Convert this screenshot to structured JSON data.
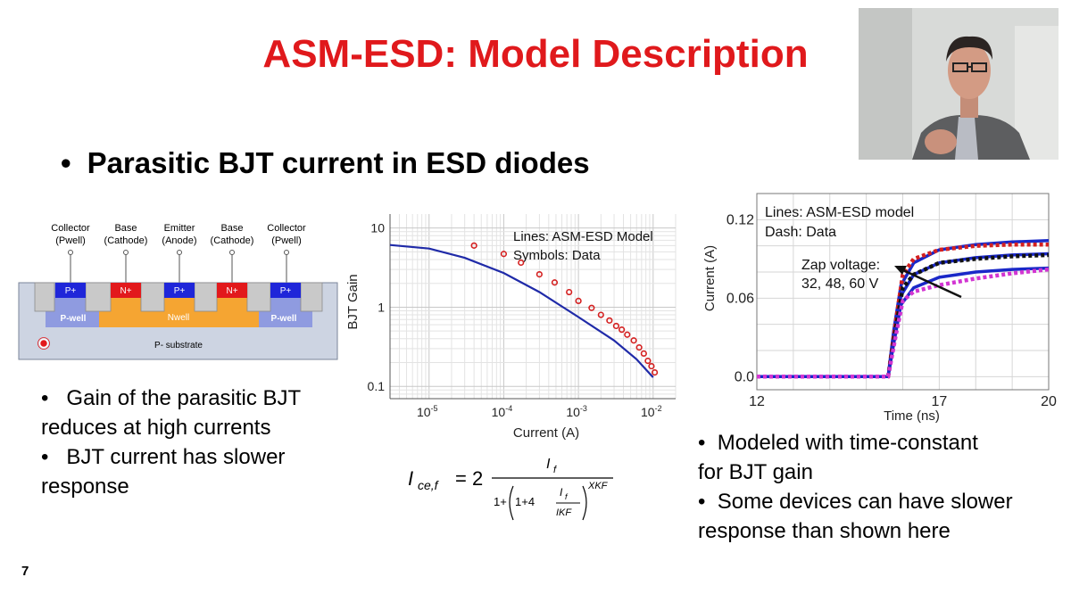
{
  "slide": {
    "title": "ASM-ESD: Model Description",
    "main_bullet": "Parasitic BJT current in ESD diodes",
    "bullet_symbol": "•",
    "slide_number": "7"
  },
  "cross_section": {
    "top_labels": [
      {
        "line1": "Collector",
        "line2": "(Pwell)"
      },
      {
        "line1": "Base",
        "line2": "(Cathode)"
      },
      {
        "line1": "Emitter",
        "line2": "(Anode)"
      },
      {
        "line1": "Base",
        "line2": "(Cathode)"
      },
      {
        "line1": "Collector",
        "line2": "(Pwell)"
      }
    ],
    "implants": [
      "P+",
      "N+",
      "P+",
      "N+",
      "P+"
    ],
    "regions": {
      "pwell_left": "P-well",
      "nwell": "Nwell",
      "pwell_right": "P-well",
      "substrate": "P- substrate"
    },
    "colors": {
      "p_plus": "#1f26d9",
      "n_plus": "#e2191c",
      "nwell": "#f5a532",
      "pwell": "#8f9be0",
      "oxide": "#c9c9c9",
      "substrate": "#cdd4e2"
    }
  },
  "left_notes": {
    "bullet1_line1": "Gain of the parasitic BJT",
    "bullet1_line2": "reduces at high currents",
    "bullet2_line1": "BJT current has slower",
    "bullet2_line2": "response"
  },
  "right_notes": {
    "bullet1_line1": "Modeled with time-constant",
    "bullet1_line2": "for BJT gain",
    "bullet2_line1": "Some devices can have slower",
    "bullet2_line2": "response than shown here"
  },
  "formula": {
    "lhs": "I",
    "lhs_sub": "ce,f",
    "equals": "= 2",
    "num": "I",
    "num_sub": "f",
    "den_a": "1+",
    "den_b": "1+4",
    "den_num": "I",
    "den_num_sub": "f",
    "den_den": "IKF",
    "exponent": "XKF"
  },
  "chart_data": [
    {
      "type": "line",
      "xlabel": "Current (A)",
      "ylabel": "BJT Gain",
      "x_scale": "log",
      "y_scale": "log",
      "xlim": [
        3e-06,
        0.02
      ],
      "ylim": [
        0.07,
        15
      ],
      "x_ticks": [
        {
          "value": 1e-05,
          "base": "10",
          "exp": "-5"
        },
        {
          "value": 0.0001,
          "base": "10",
          "exp": "-4"
        },
        {
          "value": 0.001,
          "base": "10",
          "exp": "-3"
        },
        {
          "value": 0.01,
          "base": "10",
          "exp": "-2"
        }
      ],
      "y_ticks": [
        {
          "value": 10,
          "label": "10"
        },
        {
          "value": 1,
          "label": "1"
        },
        {
          "value": 0.1,
          "label": "0.1"
        }
      ],
      "legend": {
        "line1": "Lines: ASM-ESD Model",
        "line2": "Symbols: Data"
      },
      "grid": true,
      "series": [
        {
          "style": "line",
          "color": "#1f2aa8",
          "x": [
            3e-06,
            1e-05,
            3e-05,
            0.0001,
            0.0003,
            0.001,
            0.003,
            0.006,
            0.01
          ],
          "y": [
            6.1,
            5.5,
            4.2,
            2.7,
            1.55,
            0.75,
            0.38,
            0.22,
            0.13
          ]
        },
        {
          "style": "markers",
          "color": "#d42020",
          "x": [
            4e-05,
            0.0001,
            0.00017,
            0.0003,
            0.00048,
            0.00075,
            0.001,
            0.0015,
            0.002,
            0.0026,
            0.0032,
            0.0038,
            0.0045,
            0.0055,
            0.0065,
            0.0075,
            0.0085,
            0.0095,
            0.0105
          ],
          "y": [
            6.0,
            4.7,
            3.65,
            2.6,
            2.05,
            1.55,
            1.2,
            0.98,
            0.8,
            0.68,
            0.58,
            0.52,
            0.45,
            0.38,
            0.31,
            0.26,
            0.21,
            0.18,
            0.15
          ]
        }
      ]
    },
    {
      "type": "line",
      "xlabel": "Time (ns)",
      "ylabel": "Current (A)",
      "xlim": [
        12,
        20
      ],
      "ylim": [
        -0.01,
        0.14
      ],
      "x_ticks": [
        {
          "value": 12,
          "label": "12"
        },
        {
          "value": 17,
          "label": "17"
        },
        {
          "value": 20,
          "label": "20"
        }
      ],
      "y_ticks": [
        {
          "value": 0.12,
          "label": "0.12"
        },
        {
          "value": 0.06,
          "label": "0.06"
        },
        {
          "value": 0.0,
          "label": "0.0"
        }
      ],
      "legend": {
        "line1": "Lines: ASM-ESD model",
        "line2": "Dash: Data"
      },
      "annotation": {
        "line1": "Zap voltage:",
        "line2": "32, 48, 60 V"
      },
      "grid": true,
      "series": [
        {
          "style": "solid",
          "color": "#1a28c8",
          "x": [
            12,
            15.6,
            15.75,
            15.95,
            16.3,
            17,
            18,
            19,
            20
          ],
          "y": [
            0.0,
            0.0,
            0.035,
            0.07,
            0.087,
            0.097,
            0.101,
            0.103,
            0.104
          ]
        },
        {
          "style": "solid",
          "color": "#1a28c8",
          "x": [
            12,
            15.6,
            15.75,
            15.95,
            16.3,
            17,
            18,
            19,
            20
          ],
          "y": [
            0.0,
            0.0,
            0.03,
            0.062,
            0.078,
            0.087,
            0.091,
            0.093,
            0.094
          ]
        },
        {
          "style": "solid",
          "color": "#1a28c8",
          "x": [
            12,
            15.6,
            15.75,
            15.95,
            16.3,
            17,
            18,
            19,
            20
          ],
          "y": [
            0.0,
            0.0,
            0.025,
            0.055,
            0.068,
            0.076,
            0.08,
            0.082,
            0.083
          ]
        },
        {
          "style": "dash",
          "color": "#d42020",
          "x": [
            12,
            15.6,
            15.8,
            16.0,
            16.3,
            17,
            18,
            19,
            20
          ],
          "y": [
            0.0,
            0.0,
            0.04,
            0.078,
            0.09,
            0.097,
            0.1,
            0.101,
            0.101
          ]
        },
        {
          "style": "dash",
          "color": "#111111",
          "x": [
            12,
            15.6,
            15.8,
            16.0,
            16.3,
            17,
            18,
            19,
            20
          ],
          "y": [
            0.0,
            0.0,
            0.035,
            0.068,
            0.078,
            0.087,
            0.09,
            0.092,
            0.093
          ]
        },
        {
          "style": "dash",
          "color": "#d235d2",
          "x": [
            12,
            15.6,
            15.8,
            16.0,
            16.3,
            17,
            18,
            19,
            20
          ],
          "y": [
            0.0,
            0.0,
            0.03,
            0.058,
            0.065,
            0.07,
            0.075,
            0.079,
            0.082
          ]
        }
      ]
    }
  ],
  "video": {
    "icon": "presenter-video-thumbnail"
  }
}
